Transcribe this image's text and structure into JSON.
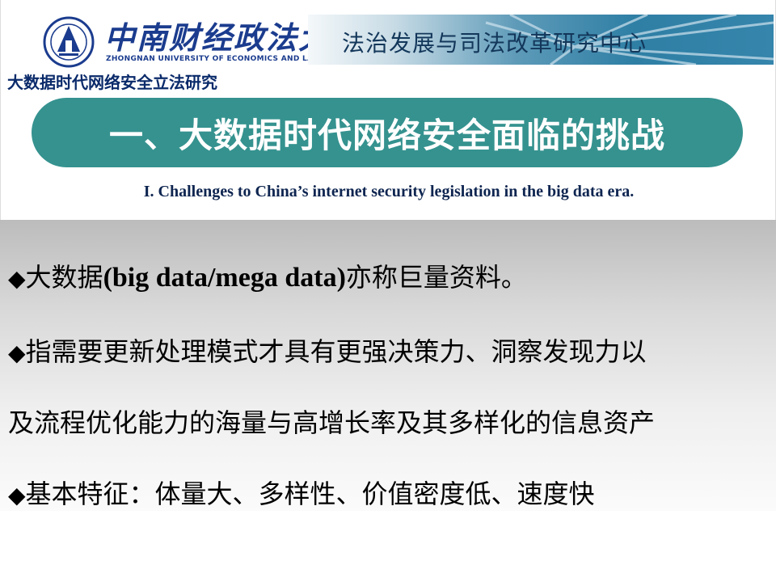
{
  "header": {
    "university_cn": "中南财经政法大学",
    "university_en": "ZHONGNAN UNIVERSITY OF ECONOMICS AND LAW",
    "center_name": "法治发展与司法改革研究中心",
    "subject": "大数据时代网络安全立法研究",
    "brand_color": "#1b3c8e"
  },
  "section": {
    "title_cn": "一、大数据时代网络安全面临的挑战",
    "title_en": "I. Challenges to China’s internet security legislation in the big data era.",
    "pill_color": "#35928f"
  },
  "body": {
    "bullet_icon": "diamond-bullet",
    "bullet_glyph": "◆",
    "line1_pre": "大数据",
    "line1_bold": "(big data/mega data)",
    "line1_post": "亦称巨量资料。",
    "line2": "指需要更新处理模式才具有更强决策力、洞察发现力以",
    "line3": "及流程优化能力的海量与高增长率及其多样化的信息资产",
    "line4": "基本特征：体量大、多样性、价值密度低、速度快"
  }
}
